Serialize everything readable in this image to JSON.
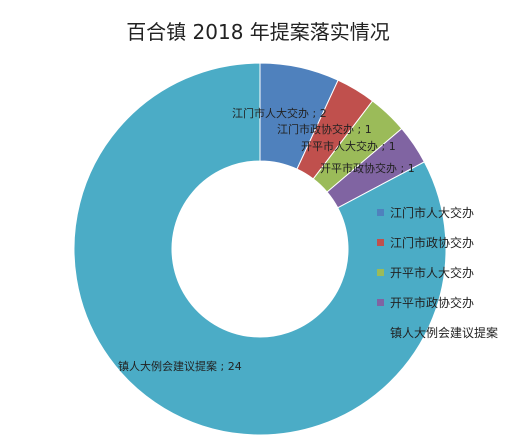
{
  "chart_data": {
    "type": "pie",
    "style": "doughnut",
    "title": "百合镇 2018 年提案落实情况",
    "categories": [
      "江门市人大交办",
      "江门市政协交办",
      "开平市人大交办",
      "开平市政协交办",
      "镇人大例会建议提案"
    ],
    "values": [
      2,
      1,
      1,
      1,
      24
    ],
    "colors": [
      "#4F81BD",
      "#C0504D",
      "#9BBB59",
      "#8064A2",
      "#4BACC6"
    ],
    "data_labels": [
      "江门市人大交办 ; 2",
      "江门市政协交办 ; 1",
      "开平市人大交办 ; 1",
      "开平市政协交办 ; 1",
      "镇人大例会建议提案 ; 24"
    ],
    "legend_position": "right"
  }
}
